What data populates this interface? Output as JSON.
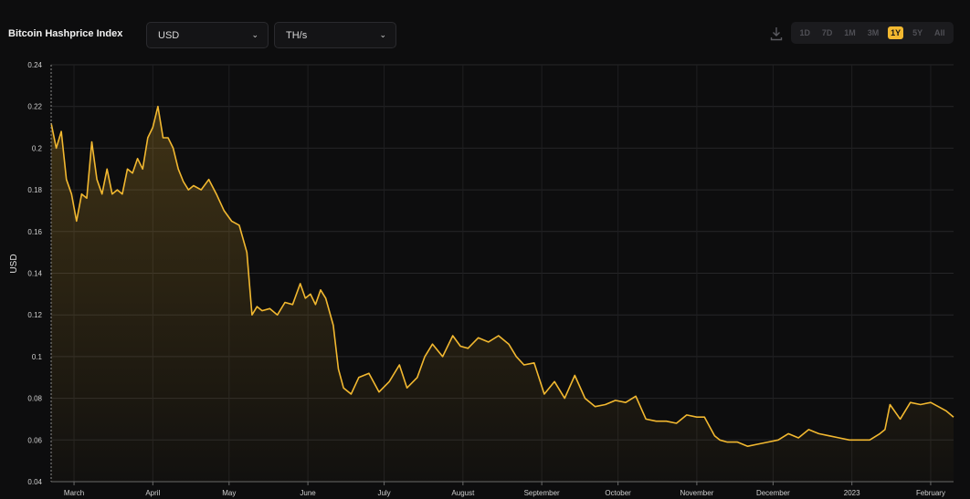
{
  "header": {
    "title": "Bitcoin Hashprice Index",
    "currency_select": "USD",
    "unit_select": "TH/s",
    "ranges": [
      "1D",
      "7D",
      "1M",
      "3M",
      "1Y",
      "5Y",
      "All"
    ],
    "active_range": "1Y"
  },
  "colors": {
    "background": "#0d0d0e",
    "line": "#f2b830",
    "grid": "#2a2a2a"
  },
  "chart_data": {
    "type": "area",
    "title": "Bitcoin Hashprice Index",
    "ylabel": "USD",
    "xlabel": "",
    "ylim": [
      0.04,
      0.24
    ],
    "y_ticks": [
      0.04,
      0.06,
      0.08,
      0.1,
      0.12,
      0.14,
      0.16,
      0.18,
      0.2,
      0.22,
      0.24
    ],
    "x_tick_labels": [
      {
        "date": "2022-03-01",
        "label": "March"
      },
      {
        "date": "2022-04-01",
        "label": "April"
      },
      {
        "date": "2022-05-01",
        "label": "May"
      },
      {
        "date": "2022-06-01",
        "label": "June"
      },
      {
        "date": "2022-07-01",
        "label": "July"
      },
      {
        "date": "2022-08-01",
        "label": "August"
      },
      {
        "date": "2022-09-01",
        "label": "September"
      },
      {
        "date": "2022-10-01",
        "label": "October"
      },
      {
        "date": "2022-11-01",
        "label": "November"
      },
      {
        "date": "2022-12-01",
        "label": "December"
      },
      {
        "date": "2023-01-01",
        "label": "2023"
      },
      {
        "date": "2023-02-01",
        "label": "February"
      }
    ],
    "xlim": [
      "2022-02-20",
      "2023-02-10"
    ],
    "grid": true,
    "series": [
      {
        "x": [
          "2022-02-20",
          "2022-02-22",
          "2022-02-24",
          "2022-02-26",
          "2022-02-28",
          "2022-03-02",
          "2022-03-04",
          "2022-03-06",
          "2022-03-08",
          "2022-03-10",
          "2022-03-12",
          "2022-03-14",
          "2022-03-16",
          "2022-03-18",
          "2022-03-20",
          "2022-03-22",
          "2022-03-24",
          "2022-03-26",
          "2022-03-28",
          "2022-03-30",
          "2022-04-01",
          "2022-04-03",
          "2022-04-05",
          "2022-04-07",
          "2022-04-09",
          "2022-04-11",
          "2022-04-13",
          "2022-04-15",
          "2022-04-17",
          "2022-04-20",
          "2022-04-23",
          "2022-04-26",
          "2022-04-29",
          "2022-05-02",
          "2022-05-05",
          "2022-05-08",
          "2022-05-10",
          "2022-05-12",
          "2022-05-14",
          "2022-05-17",
          "2022-05-20",
          "2022-05-23",
          "2022-05-26",
          "2022-05-29",
          "2022-05-31",
          "2022-06-02",
          "2022-06-04",
          "2022-06-06",
          "2022-06-08",
          "2022-06-11",
          "2022-06-13",
          "2022-06-15",
          "2022-06-18",
          "2022-06-21",
          "2022-06-25",
          "2022-06-29",
          "2022-07-03",
          "2022-07-07",
          "2022-07-10",
          "2022-07-14",
          "2022-07-17",
          "2022-07-20",
          "2022-07-24",
          "2022-07-28",
          "2022-07-31",
          "2022-08-03",
          "2022-08-07",
          "2022-08-11",
          "2022-08-15",
          "2022-08-19",
          "2022-08-22",
          "2022-08-25",
          "2022-08-29",
          "2022-09-02",
          "2022-09-06",
          "2022-09-10",
          "2022-09-14",
          "2022-09-18",
          "2022-09-22",
          "2022-09-26",
          "2022-09-30",
          "2022-10-04",
          "2022-10-08",
          "2022-10-12",
          "2022-10-16",
          "2022-10-20",
          "2022-10-24",
          "2022-10-28",
          "2022-11-01",
          "2022-11-04",
          "2022-11-08",
          "2022-11-10",
          "2022-11-13",
          "2022-11-17",
          "2022-11-21",
          "2022-11-25",
          "2022-11-29",
          "2022-12-03",
          "2022-12-07",
          "2022-12-11",
          "2022-12-15",
          "2022-12-19",
          "2022-12-23",
          "2022-12-27",
          "2022-12-31",
          "2023-01-04",
          "2023-01-08",
          "2023-01-12",
          "2023-01-14",
          "2023-01-16",
          "2023-01-20",
          "2023-01-24",
          "2023-01-28",
          "2023-02-01",
          "2023-02-04",
          "2023-02-07",
          "2023-02-10"
        ],
        "y": [
          0.212,
          0.2,
          0.208,
          0.185,
          0.178,
          0.165,
          0.178,
          0.176,
          0.203,
          0.185,
          0.178,
          0.19,
          0.178,
          0.18,
          0.178,
          0.19,
          0.188,
          0.195,
          0.19,
          0.205,
          0.21,
          0.22,
          0.205,
          0.205,
          0.2,
          0.19,
          0.184,
          0.18,
          0.182,
          0.18,
          0.185,
          0.178,
          0.17,
          0.165,
          0.163,
          0.15,
          0.12,
          0.124,
          0.122,
          0.123,
          0.12,
          0.126,
          0.125,
          0.135,
          0.128,
          0.13,
          0.125,
          0.132,
          0.128,
          0.115,
          0.094,
          0.085,
          0.082,
          0.09,
          0.092,
          0.083,
          0.088,
          0.096,
          0.085,
          0.09,
          0.1,
          0.106,
          0.1,
          0.11,
          0.105,
          0.104,
          0.109,
          0.107,
          0.11,
          0.106,
          0.1,
          0.096,
          0.097,
          0.082,
          0.088,
          0.08,
          0.091,
          0.08,
          0.076,
          0.077,
          0.079,
          0.078,
          0.081,
          0.07,
          0.069,
          0.069,
          0.068,
          0.072,
          0.071,
          0.071,
          0.062,
          0.06,
          0.059,
          0.059,
          0.057,
          0.058,
          0.059,
          0.06,
          0.063,
          0.061,
          0.065,
          0.063,
          0.062,
          0.061,
          0.06,
          0.06,
          0.06,
          0.063,
          0.065,
          0.077,
          0.07,
          0.078,
          0.077,
          0.078,
          0.076,
          0.074,
          0.071
        ]
      }
    ]
  }
}
